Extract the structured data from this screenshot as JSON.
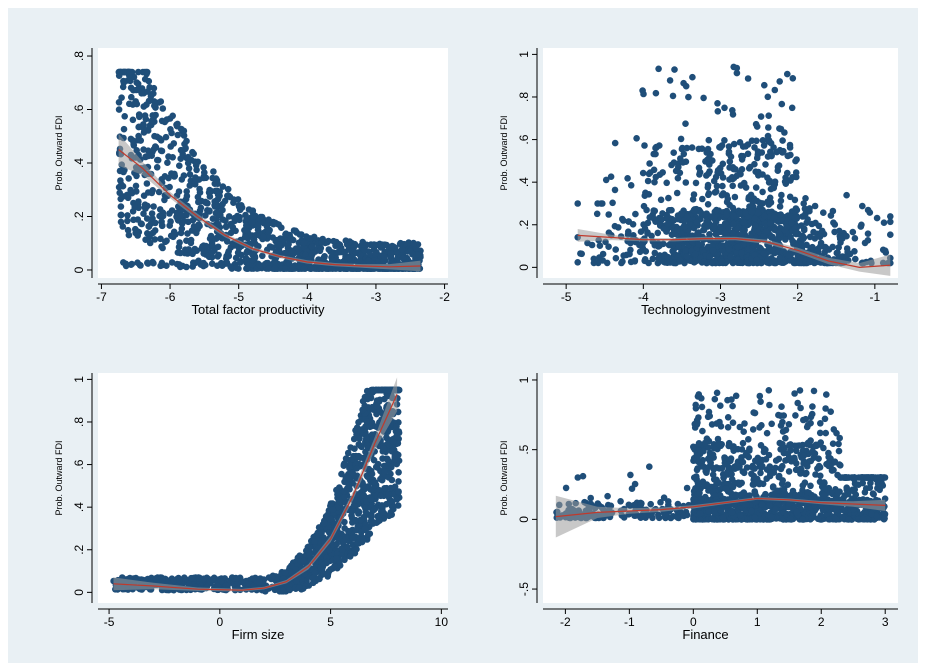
{
  "colors": {
    "background": "#e9f0f4",
    "plot_area": "#ffffff",
    "markers": "#1f4e79",
    "fit_line": "#c0392b",
    "ci_band": "#9a9a9a"
  },
  "chart_data": [
    {
      "type": "scatter",
      "title": "",
      "xlabel": "Total factor productivity",
      "ylabel": "Prob. Outward FDI",
      "xlim": [
        -7.05,
        -1.95
      ],
      "ylim": [
        -0.03,
        0.83
      ],
      "xticks": [
        -7,
        -6,
        -5,
        -4,
        -3,
        -2
      ],
      "xtick_labels": [
        "-7",
        "-6",
        "-5",
        "-4",
        "-3",
        "-2"
      ],
      "yticks": [
        0,
        0.2,
        0.4,
        0.6,
        0.8
      ],
      "ytick_labels": [
        "0",
        ".2",
        ".4",
        ".6",
        ".8"
      ],
      "grid": false,
      "scatter_range": {
        "x": [
          -6.75,
          -2.35
        ]
      },
      "fit": {
        "x": [
          -6.75,
          -6.4,
          -6.0,
          -5.6,
          -5.2,
          -4.8,
          -4.4,
          -4.0,
          -3.6,
          -3.2,
          -2.8,
          -2.35
        ],
        "y": [
          0.45,
          0.38,
          0.28,
          0.2,
          0.13,
          0.08,
          0.05,
          0.03,
          0.02,
          0.015,
          0.012,
          0.015
        ],
        "ci": [
          0.06,
          0.025,
          0.012,
          0.01,
          0.008,
          0.007,
          0.006,
          0.006,
          0.006,
          0.007,
          0.01,
          0.02
        ]
      }
    },
    {
      "type": "scatter",
      "title": "",
      "xlabel": "Technologyinvestment",
      "ylabel": "Prob. Outward FDI",
      "xlim": [
        -5.3,
        -0.7
      ],
      "ylim": [
        -0.05,
        1.03
      ],
      "xticks": [
        -5,
        -4,
        -3,
        -2,
        -1
      ],
      "xtick_labels": [
        "-5",
        "-4",
        "-3",
        "-2",
        "-1"
      ],
      "yticks": [
        0,
        0.2,
        0.4,
        0.6,
        0.8,
        1
      ],
      "ytick_labels": [
        "0",
        ".2",
        ".4",
        ".6",
        ".8",
        "1"
      ],
      "grid": false,
      "scatter_range": {
        "x": [
          -4.85,
          -0.8
        ]
      },
      "fit": {
        "x": [
          -4.85,
          -4.4,
          -4.0,
          -3.6,
          -3.2,
          -2.8,
          -2.4,
          -2.0,
          -1.6,
          -1.2,
          -0.8
        ],
        "y": [
          0.15,
          0.14,
          0.13,
          0.13,
          0.135,
          0.135,
          0.12,
          0.08,
          0.03,
          0.0,
          0.01
        ],
        "ci": [
          0.03,
          0.012,
          0.008,
          0.008,
          0.008,
          0.008,
          0.01,
          0.012,
          0.015,
          0.02,
          0.05
        ]
      }
    },
    {
      "type": "scatter",
      "title": "",
      "xlabel": "Firm size",
      "ylabel": "Prob. Outward FDI",
      "xlim": [
        -5.5,
        10.3
      ],
      "ylim": [
        -0.05,
        1.03
      ],
      "xticks": [
        -5,
        0,
        5,
        10
      ],
      "xtick_labels": [
        "-5",
        "0",
        "5",
        "10"
      ],
      "yticks": [
        0,
        0.2,
        0.4,
        0.6,
        0.8,
        1
      ],
      "ytick_labels": [
        "0",
        ".2",
        ".4",
        ".6",
        ".8",
        "1"
      ],
      "grid": false,
      "scatter_range": {
        "x": [
          -4.8,
          8.1
        ]
      },
      "fit": {
        "x": [
          -4.8,
          -3,
          -1,
          1,
          2,
          3,
          4,
          5,
          6,
          7,
          8
        ],
        "y": [
          0.04,
          0.03,
          0.015,
          0.01,
          0.02,
          0.05,
          0.12,
          0.25,
          0.45,
          0.7,
          0.93
        ],
        "ci": [
          0.03,
          0.015,
          0.008,
          0.006,
          0.006,
          0.008,
          0.012,
          0.015,
          0.02,
          0.03,
          0.08
        ]
      }
    },
    {
      "type": "scatter",
      "title": "",
      "xlabel": "Finance",
      "ylabel": "Prob. Outward FDI",
      "xlim": [
        -2.35,
        3.2
      ],
      "ylim": [
        -0.6,
        1.05
      ],
      "xticks": [
        -2,
        -1,
        0,
        1,
        2,
        3
      ],
      "xtick_labels": [
        "-2",
        "-1",
        "0",
        "1",
        "2",
        "3"
      ],
      "yticks": [
        -0.5,
        0,
        0.5,
        1
      ],
      "ytick_labels": [
        "-.5",
        "0",
        ".5",
        "1"
      ],
      "grid": false,
      "scatter_range": {
        "x": [
          -2.15,
          3.0
        ]
      },
      "fit": {
        "x": [
          -2.15,
          -1.5,
          -1.0,
          -0.5,
          0,
          0.5,
          1.0,
          1.5,
          2.0,
          2.5,
          3.0
        ],
        "y": [
          0.02,
          0.05,
          0.06,
          0.07,
          0.09,
          0.12,
          0.15,
          0.14,
          0.12,
          0.11,
          0.1
        ],
        "ci": [
          0.15,
          0.04,
          0.02,
          0.015,
          0.012,
          0.01,
          0.01,
          0.01,
          0.012,
          0.02,
          0.04
        ]
      }
    }
  ]
}
